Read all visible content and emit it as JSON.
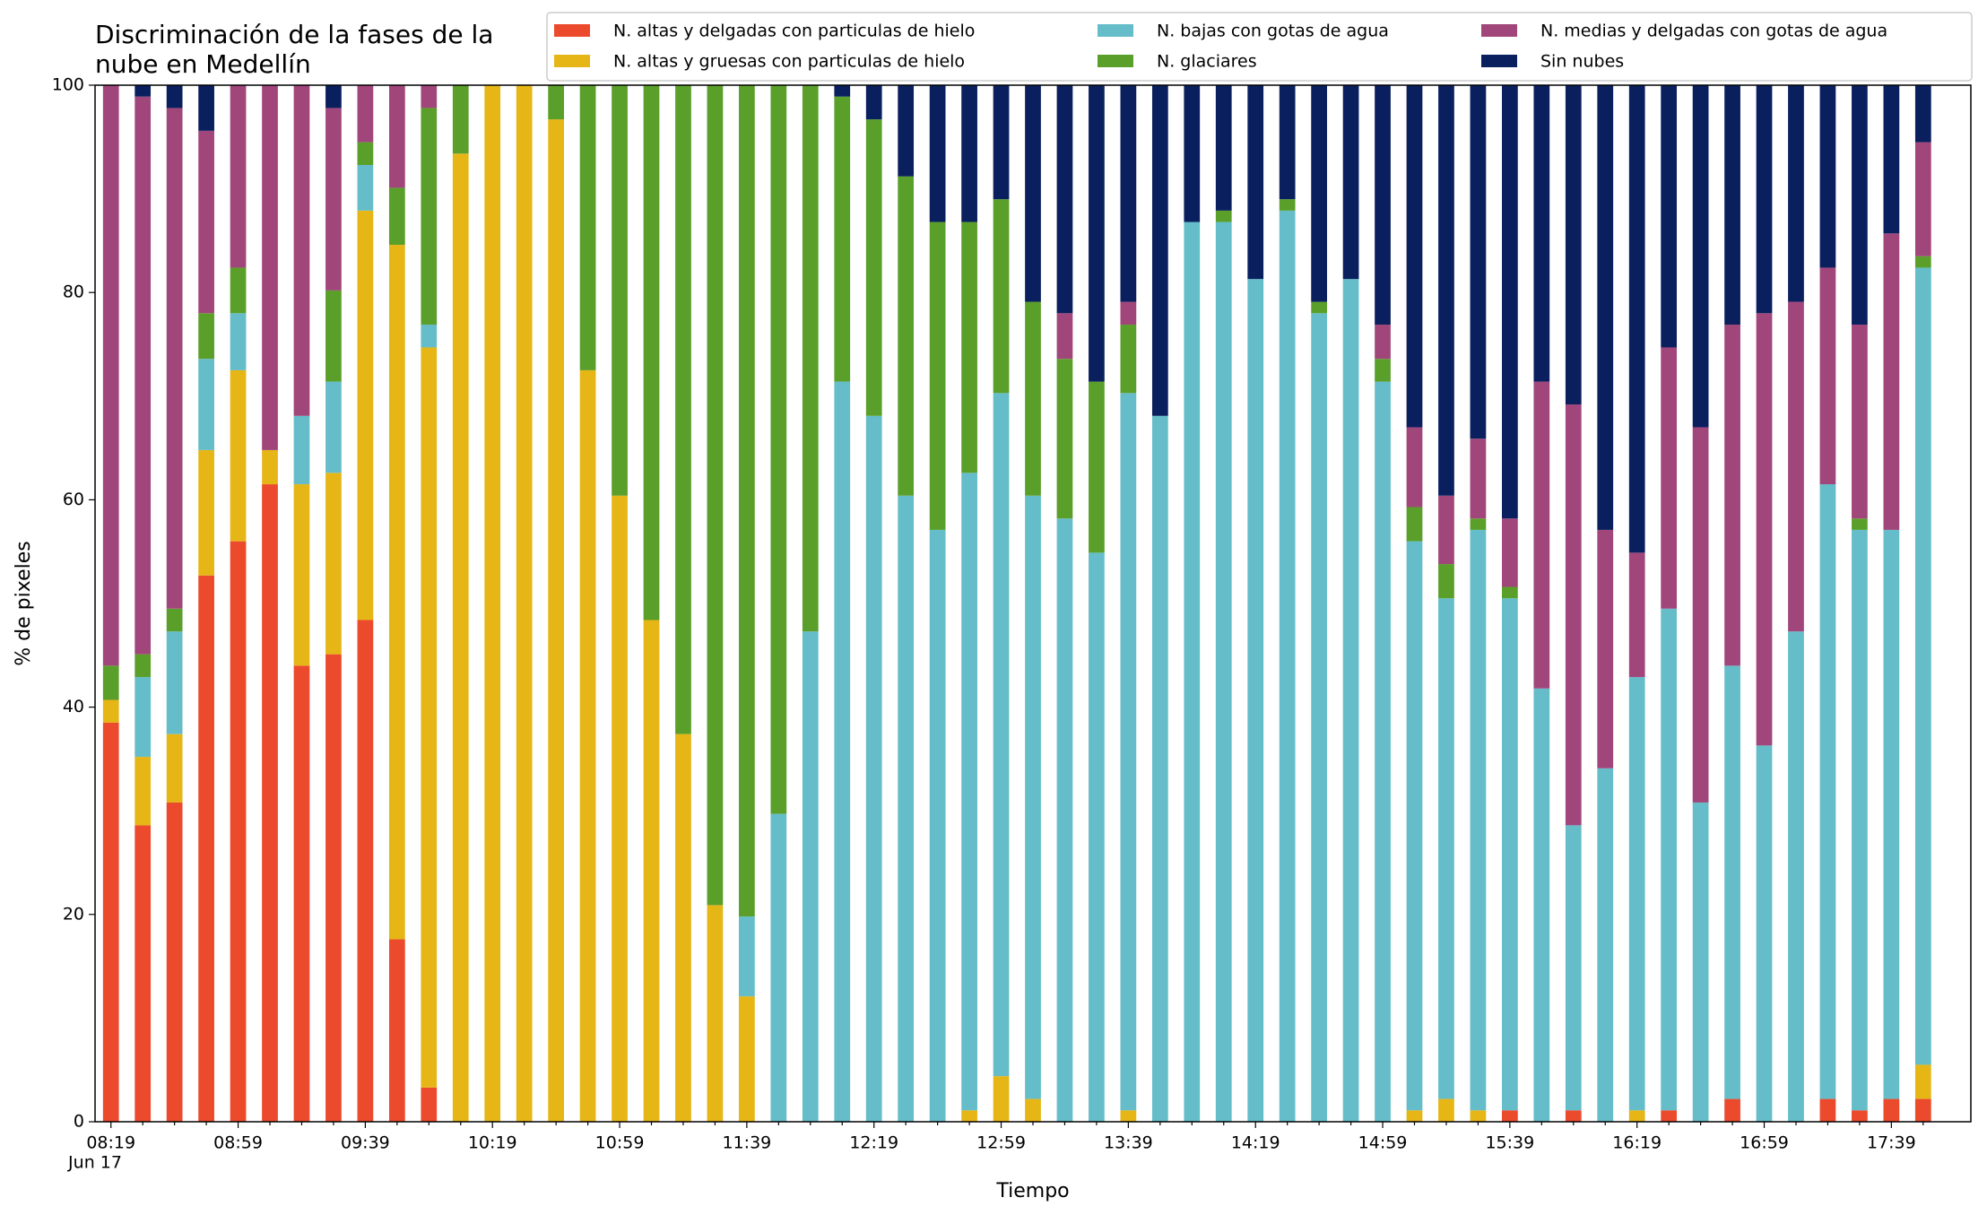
{
  "chart_data": {
    "type": "stacked_bar",
    "title": [
      "Discriminación de la fases de la",
      "nube en Medellín"
    ],
    "xlabel": "Tiempo",
    "ylabel": "% de pixeles",
    "x_date_label": "Jun 17",
    "categories": [
      "08:19",
      null,
      null,
      null,
      "08:59",
      null,
      null,
      null,
      "09:39",
      null,
      null,
      null,
      "10:19",
      null,
      null,
      null,
      "10:59",
      null,
      null,
      null,
      "11:39",
      null,
      null,
      null,
      "12:19",
      null,
      null,
      null,
      "12:59",
      null,
      null,
      null,
      "13:39",
      null,
      null,
      null,
      "14:19",
      null,
      null,
      null,
      "14:59",
      null,
      null,
      null,
      "15:39",
      null,
      null,
      null,
      "16:19",
      null,
      null,
      null,
      "16:59",
      null,
      null,
      null,
      "17:39",
      null
    ],
    "ylim": [
      0,
      100
    ],
    "yticks": [
      0,
      20,
      40,
      60,
      80,
      100
    ],
    "legend": "top",
    "series": [
      {
        "name": "N. altas y delgadas con particulas de hielo",
        "color": "#ec4a2c",
        "values": [
          38.5,
          28.6,
          30.8,
          52.7,
          56,
          61.5,
          44,
          45.1,
          48.4,
          17.6,
          3.3,
          0,
          0,
          0,
          0,
          0,
          0,
          0,
          0,
          0,
          0,
          0,
          0,
          0,
          0,
          0,
          0,
          0,
          0,
          0,
          0,
          0,
          0,
          0,
          0,
          0,
          0,
          0,
          0,
          0,
          0,
          0,
          0,
          0,
          1.1,
          0,
          1.1,
          0,
          0,
          1.1,
          0,
          2.2,
          0,
          0,
          2.2,
          1.1,
          2.2,
          2.2
        ]
      },
      {
        "name": "N. altas y gruesas con particulas de hielo",
        "color": "#e6b617",
        "values": [
          2.2,
          6.6,
          6.6,
          12.1,
          16.5,
          3.3,
          17.5,
          17.5,
          39.5,
          67,
          71.4,
          93.4,
          100,
          100,
          96.7,
          72.5,
          60.4,
          48.4,
          37.4,
          20.9,
          12.1,
          0,
          0,
          0,
          0,
          0,
          0,
          1.1,
          4.4,
          2.2,
          0,
          0,
          1.1,
          0,
          0,
          0,
          0,
          0,
          0,
          0,
          0,
          1.1,
          2.2,
          1.1,
          0,
          0,
          0,
          0,
          1.1,
          0,
          0,
          0,
          0,
          0,
          0,
          0,
          0,
          3.3
        ]
      },
      {
        "name": "N. bajas con gotas de agua",
        "color": "#64bdc9",
        "values": [
          0,
          7.7,
          9.9,
          8.8,
          5.5,
          0,
          6.6,
          8.8,
          4.4,
          0,
          2.2,
          0,
          0,
          0,
          0,
          0,
          0,
          0,
          0,
          0,
          7.7,
          29.7,
          47.3,
          71.4,
          68.1,
          60.4,
          57.1,
          61.5,
          65.9,
          58.2,
          58.2,
          54.9,
          69.2,
          68.1,
          86.8,
          86.8,
          81.3,
          87.9,
          78,
          81.3,
          71.4,
          54.9,
          48.3,
          56,
          49.4,
          41.8,
          27.5,
          34.1,
          41.8,
          48.4,
          30.8,
          41.8,
          36.3,
          47.3,
          59.3,
          56,
          54.9,
          76.9
        ]
      },
      {
        "name": "N. glaciares",
        "color": "#5b9f2b",
        "values": [
          3.3,
          2.2,
          2.2,
          4.4,
          4.4,
          0,
          0,
          8.8,
          2.2,
          5.5,
          20.9,
          6.6,
          0,
          0,
          3.3,
          27.5,
          39.6,
          51.6,
          62.6,
          79.1,
          80.2,
          70.3,
          52.7,
          27.5,
          28.6,
          30.8,
          29.7,
          24.2,
          18.7,
          18.7,
          15.4,
          16.5,
          6.6,
          0,
          0,
          1.1,
          0,
          1.1,
          1.1,
          0,
          2.2,
          3.3,
          3.3,
          1.1,
          1.1,
          0,
          0,
          0,
          0,
          0,
          0,
          0,
          0,
          0,
          0,
          1.1,
          0,
          1.1
        ]
      },
      {
        "name": "N. medias y delgadas con gotas de agua",
        "color": "#a1467b",
        "values": [
          56,
          53.8,
          48.3,
          17.6,
          17.6,
          35.2,
          31.9,
          17.6,
          5.5,
          9.9,
          2.2,
          0,
          0,
          0,
          0,
          0,
          0,
          0,
          0,
          0,
          0,
          0,
          0,
          0,
          0,
          0,
          0,
          0,
          0,
          0,
          4.4,
          0,
          2.2,
          0,
          0,
          0,
          0,
          0,
          0,
          0,
          3.3,
          7.7,
          6.6,
          7.7,
          6.6,
          29.6,
          40.6,
          23,
          12,
          25.2,
          36.2,
          32.9,
          41.7,
          31.8,
          20.9,
          18.7,
          28.6,
          11
        ]
      },
      {
        "name": "Sin nubes",
        "color": "#0a1f5e",
        "values": [
          0,
          1.1,
          2.2,
          4.4,
          0,
          0,
          0,
          2.2,
          0,
          0,
          0,
          0,
          0,
          0,
          0,
          0,
          0,
          0,
          0,
          0,
          0,
          0,
          0,
          1.1,
          3.3,
          8.8,
          13.2,
          13.2,
          11,
          20.9,
          22,
          28.6,
          20.9,
          31.9,
          13.2,
          12.1,
          18.7,
          11,
          20.9,
          18.7,
          23.1,
          33,
          39.6,
          34.1,
          41.8,
          28.6,
          30.8,
          42.9,
          45.1,
          25.3,
          33,
          23.1,
          22,
          20.9,
          17.6,
          23.1,
          14.3,
          5.5
        ]
      }
    ]
  }
}
